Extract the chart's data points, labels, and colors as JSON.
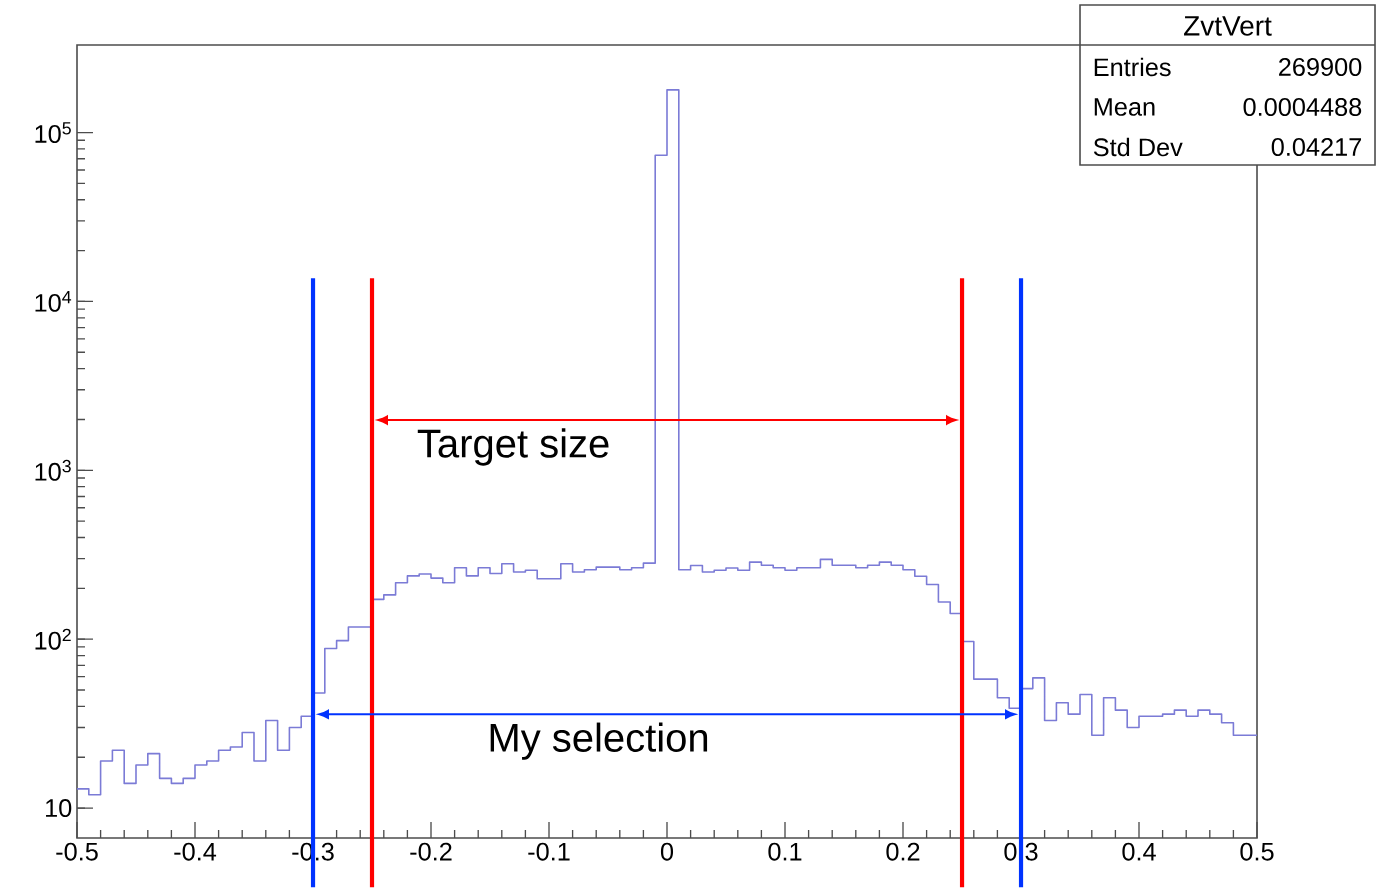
{
  "chart_data": {
    "type": "histogram",
    "bins": [
      -0.5,
      -0.49,
      -0.48,
      -0.47,
      -0.46,
      -0.45,
      -0.44,
      -0.43,
      -0.42,
      -0.41,
      -0.4,
      -0.39,
      -0.38,
      -0.37,
      -0.36,
      -0.35,
      -0.34,
      -0.33,
      -0.32,
      -0.31,
      -0.3,
      -0.29,
      -0.28,
      -0.27,
      -0.26,
      -0.25,
      -0.24,
      -0.23,
      -0.22,
      -0.21,
      -0.2,
      -0.19,
      -0.18,
      -0.17,
      -0.16,
      -0.15,
      -0.14,
      -0.13,
      -0.12,
      -0.11,
      -0.1,
      -0.09,
      -0.08,
      -0.07,
      -0.06,
      -0.05,
      -0.04,
      -0.03,
      -0.02,
      -0.01,
      0,
      0.01,
      0.02,
      0.03,
      0.04,
      0.05,
      0.06,
      0.07,
      0.08,
      0.09,
      0.1,
      0.11,
      0.12,
      0.13,
      0.14,
      0.15,
      0.16,
      0.17,
      0.18,
      0.19,
      0.2,
      0.21,
      0.22,
      0.23,
      0.24,
      0.25,
      0.26,
      0.27,
      0.28,
      0.29,
      0.3,
      0.31,
      0.32,
      0.33,
      0.34,
      0.35,
      0.36,
      0.37,
      0.38,
      0.39,
      0.4,
      0.41,
      0.42,
      0.43,
      0.44,
      0.45,
      0.46,
      0.47,
      0.48,
      0.49,
      0.5
    ],
    "values": [
      13,
      12,
      19,
      22,
      14,
      18,
      21,
      15,
      14,
      15,
      18,
      19,
      22,
      23,
      28,
      19,
      33,
      22,
      30,
      35,
      48,
      88,
      98,
      118,
      118,
      172,
      183,
      216,
      237,
      243,
      230,
      216,
      265,
      237,
      265,
      245,
      280,
      250,
      256,
      228,
      228,
      280,
      250,
      258,
      267,
      267,
      258,
      265,
      282,
      73400,
      179000,
      258,
      273,
      250,
      256,
      264,
      256,
      286,
      274,
      265,
      256,
      265,
      265,
      297,
      274,
      274,
      265,
      274,
      286,
      274,
      258,
      236,
      211,
      166,
      142,
      97,
      58,
      58,
      45,
      39,
      51,
      59,
      33,
      42,
      36,
      47,
      27,
      45,
      38,
      30,
      35,
      35,
      36,
      38,
      35,
      38,
      36,
      32,
      27,
      27
    ],
    "color": "#7b7bd6",
    "log": "y",
    "xlim": [
      -0.5,
      0.5
    ],
    "xticks": [
      -0.5,
      -0.4,
      -0.3,
      -0.2,
      -0.1,
      0,
      0.1,
      0.2,
      0.3,
      0.4,
      0.5
    ],
    "ylim": [
      6.65,
      330000
    ],
    "yticks": [
      10,
      {
        "value": 100,
        "label": "10$^{2}$"
      },
      {
        "value": 1000,
        "label": "10$^{3}$"
      },
      {
        "value": 10000,
        "label": "10$^{4}$"
      },
      {
        "value": 100000,
        "label": "10$^{5}$"
      }
    ],
    "ref_lines": [
      {
        "axis": "x",
        "value": -0.25,
        "color": "#ff0000"
      },
      {
        "axis": "x",
        "value": 0.25,
        "color": "#ff0000"
      },
      {
        "axis": "x",
        "value": -0.3,
        "color": "#0033ff"
      },
      {
        "axis": "x",
        "value": 0.3,
        "color": "#0033ff"
      }
    ],
    "annotations": [
      "Target size",
      "My selection",
      "ZvtVert",
      "Entries",
      "269900",
      "Mean",
      "0.0004488",
      "Std Dev",
      "0.04217"
    ],
    "grid": false
  }
}
